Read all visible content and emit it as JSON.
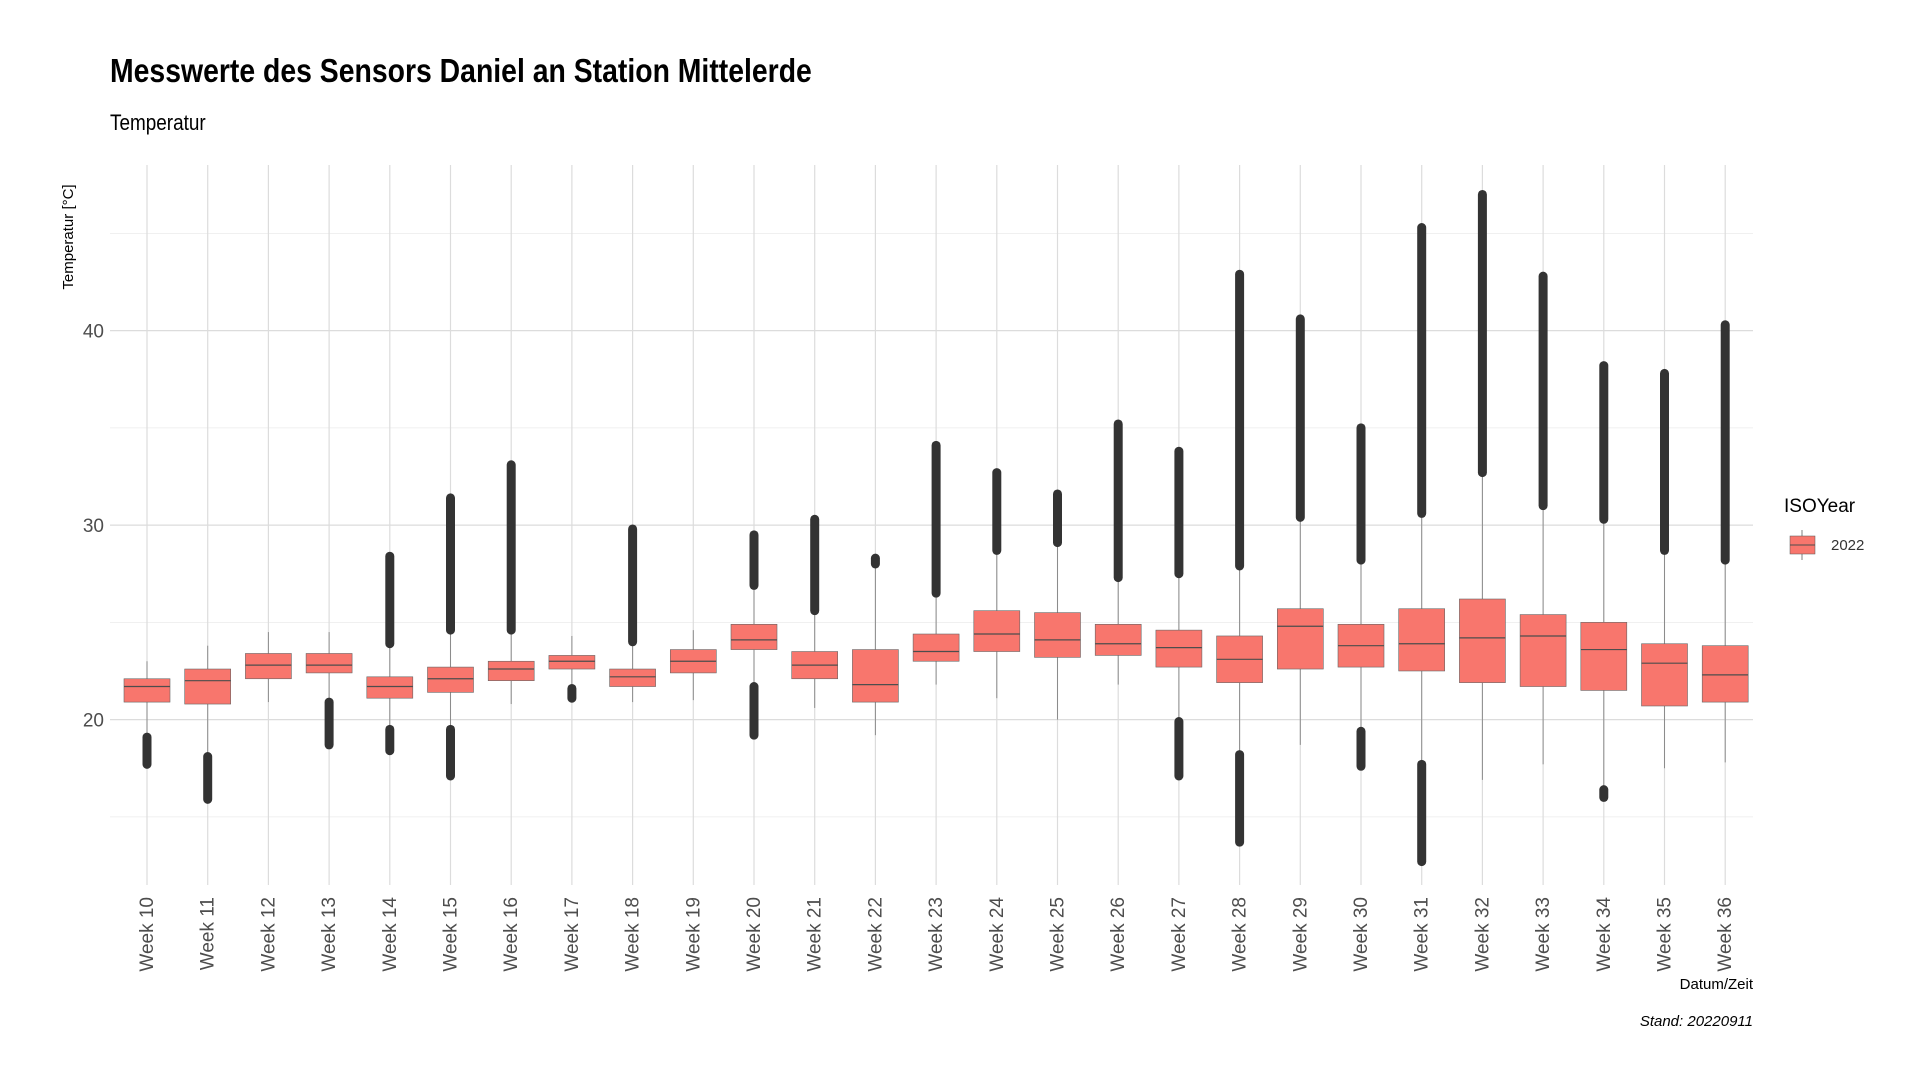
{
  "chart_data": {
    "type": "box",
    "title": "Messwerte des Sensors Daniel an Station Mittelerde",
    "subtitle": "Temperatur",
    "xlabel": "Datum/Zeit",
    "ylabel": "Temperatur [°C]",
    "caption": "Stand: 20220911",
    "ylim": [
      11.5,
      48.5
    ],
    "yticks": [
      20,
      30,
      40
    ],
    "grid": true,
    "legend": {
      "title": "ISOYear",
      "position": "right",
      "entries": [
        {
          "label": "2022",
          "color": "#F8766D"
        }
      ]
    },
    "series": [
      {
        "name": "2022",
        "color": "#F8766D",
        "categories": [
          "Week 10",
          "Week 11",
          "Week 12",
          "Week 13",
          "Week 14",
          "Week 15",
          "Week 16",
          "Week 17",
          "Week 18",
          "Week 19",
          "Week 20",
          "Week 21",
          "Week 22",
          "Week 23",
          "Week 24",
          "Week 25",
          "Week 26",
          "Week 27",
          "Week 28",
          "Week 29",
          "Week 30",
          "Week 31",
          "Week 32",
          "Week 33",
          "Week 34",
          "Week 35",
          "Week 36"
        ],
        "boxes": [
          {
            "whisker_low": 19.2,
            "q1": 20.9,
            "median": 21.7,
            "q3": 22.1,
            "whisker_high": 23.0,
            "outliers_low": [
              17.7,
              19.1
            ],
            "outliers_high": null
          },
          {
            "whisker_low": 18.2,
            "q1": 20.8,
            "median": 22.0,
            "q3": 22.6,
            "whisker_high": 23.8,
            "outliers_low": [
              15.9,
              18.1
            ],
            "outliers_high": null
          },
          {
            "whisker_low": 20.9,
            "q1": 22.1,
            "median": 22.8,
            "q3": 23.4,
            "whisker_high": 24.5,
            "outliers_low": null,
            "outliers_high": null
          },
          {
            "whisker_low": 21.0,
            "q1": 22.4,
            "median": 22.8,
            "q3": 23.4,
            "whisker_high": 24.5,
            "outliers_low": [
              18.7,
              20.9
            ],
            "outliers_high": null
          },
          {
            "whisker_low": 19.6,
            "q1": 21.1,
            "median": 21.7,
            "q3": 22.2,
            "whisker_high": 23.9,
            "outliers_low": [
              18.4,
              19.5
            ],
            "outliers_high": [
              23.9,
              28.4
            ]
          },
          {
            "whisker_low": 19.6,
            "q1": 21.4,
            "median": 22.1,
            "q3": 22.7,
            "whisker_high": 24.6,
            "outliers_low": [
              17.1,
              19.5
            ],
            "outliers_high": [
              24.6,
              31.4
            ]
          },
          {
            "whisker_low": 20.8,
            "q1": 22.0,
            "median": 22.6,
            "q3": 23.0,
            "whisker_high": 24.5,
            "outliers_low": null,
            "outliers_high": [
              24.6,
              33.1
            ]
          },
          {
            "whisker_low": 21.7,
            "q1": 22.6,
            "median": 23.0,
            "q3": 23.3,
            "whisker_high": 24.3,
            "outliers_low": [
              21.1,
              21.6
            ],
            "outliers_high": null
          },
          {
            "whisker_low": 20.9,
            "q1": 21.7,
            "median": 22.2,
            "q3": 22.6,
            "whisker_high": 23.9,
            "outliers_low": null,
            "outliers_high": [
              24.0,
              29.8
            ]
          },
          {
            "whisker_low": 21.0,
            "q1": 22.4,
            "median": 23.0,
            "q3": 23.6,
            "whisker_high": 24.6,
            "outliers_low": null,
            "outliers_high": null
          },
          {
            "whisker_low": 21.7,
            "q1": 23.6,
            "median": 24.1,
            "q3": 24.9,
            "whisker_high": 26.8,
            "outliers_low": [
              19.2,
              21.7
            ],
            "outliers_high": [
              26.9,
              29.5
            ]
          },
          {
            "whisker_low": 20.6,
            "q1": 22.1,
            "median": 22.8,
            "q3": 23.5,
            "whisker_high": 25.5,
            "outliers_low": null,
            "outliers_high": [
              25.6,
              30.3
            ]
          },
          {
            "whisker_low": 19.2,
            "q1": 20.9,
            "median": 21.8,
            "q3": 23.6,
            "whisker_high": 28.0,
            "outliers_low": null,
            "outliers_high": [
              28.0,
              28.3
            ]
          },
          {
            "whisker_low": 21.8,
            "q1": 23.0,
            "median": 23.5,
            "q3": 24.4,
            "whisker_high": 26.4,
            "outliers_low": null,
            "outliers_high": [
              26.5,
              34.1
            ]
          },
          {
            "whisker_low": 21.1,
            "q1": 23.5,
            "median": 24.4,
            "q3": 25.6,
            "whisker_high": 28.6,
            "outliers_low": null,
            "outliers_high": [
              28.7,
              32.7
            ]
          },
          {
            "whisker_low": 20.0,
            "q1": 23.2,
            "median": 24.1,
            "q3": 25.5,
            "whisker_high": 28.9,
            "outliers_low": null,
            "outliers_high": [
              29.1,
              31.6
            ]
          },
          {
            "whisker_low": 21.8,
            "q1": 23.3,
            "median": 23.9,
            "q3": 24.9,
            "whisker_high": 27.2,
            "outliers_low": null,
            "outliers_high": [
              27.3,
              35.2
            ]
          },
          {
            "whisker_low": 20.0,
            "q1": 22.7,
            "median": 23.7,
            "q3": 24.6,
            "whisker_high": 27.4,
            "outliers_low": [
              17.1,
              19.9
            ],
            "outliers_high": [
              27.5,
              33.8
            ]
          },
          {
            "whisker_low": 18.3,
            "q1": 21.9,
            "median": 23.1,
            "q3": 24.3,
            "whisker_high": 27.8,
            "outliers_low": [
              13.7,
              18.2
            ],
            "outliers_high": [
              27.9,
              42.9
            ]
          },
          {
            "whisker_low": 18.7,
            "q1": 22.6,
            "median": 24.8,
            "q3": 25.7,
            "whisker_high": 30.3,
            "outliers_low": null,
            "outliers_high": [
              30.4,
              40.6
            ]
          },
          {
            "whisker_low": 19.5,
            "q1": 22.7,
            "median": 23.8,
            "q3": 24.9,
            "whisker_high": 28.1,
            "outliers_low": [
              17.6,
              19.4
            ],
            "outliers_high": [
              28.2,
              35.0
            ]
          },
          {
            "whisker_low": 17.8,
            "q1": 22.5,
            "median": 23.9,
            "q3": 25.7,
            "whisker_high": 30.5,
            "outliers_low": [
              12.7,
              17.7
            ],
            "outliers_high": [
              30.6,
              45.3
            ]
          },
          {
            "whisker_low": 16.9,
            "q1": 21.9,
            "median": 24.2,
            "q3": 26.2,
            "whisker_high": 32.6,
            "outliers_low": null,
            "outliers_high": [
              32.7,
              47.0
            ]
          },
          {
            "whisker_low": 17.7,
            "q1": 21.7,
            "median": 24.3,
            "q3": 25.4,
            "whisker_high": 30.9,
            "outliers_low": null,
            "outliers_high": [
              31.0,
              42.8
            ]
          },
          {
            "whisker_low": 16.5,
            "q1": 21.5,
            "median": 23.6,
            "q3": 25.0,
            "whisker_high": 30.2,
            "outliers_low": [
              16.0,
              16.4
            ],
            "outliers_high": [
              30.3,
              38.2
            ]
          },
          {
            "whisker_low": 17.5,
            "q1": 20.7,
            "median": 22.9,
            "q3": 23.9,
            "whisker_high": 28.6,
            "outliers_low": null,
            "outliers_high": [
              28.7,
              37.8
            ]
          },
          {
            "whisker_low": 17.8,
            "q1": 20.9,
            "median": 22.3,
            "q3": 23.8,
            "whisker_high": 28.1,
            "outliers_low": null,
            "outliers_high": [
              28.2,
              40.3
            ]
          }
        ]
      }
    ]
  }
}
